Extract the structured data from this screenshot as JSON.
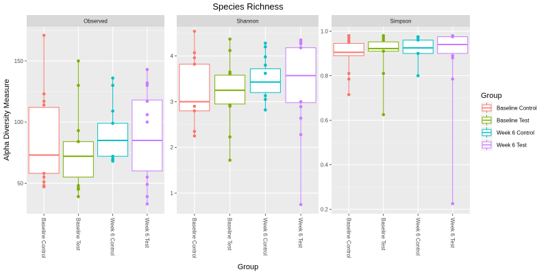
{
  "chart_data": {
    "type": "box",
    "title": "Species Richness",
    "xlabel": "Group",
    "ylabel": "Alpha Diversity Measure",
    "categories": [
      "Baseline Control",
      "Baseline Test",
      "Week 6 Control",
      "Week 6 Test"
    ],
    "legend": {
      "title": "Group",
      "placement": "right",
      "entries": [
        "Baseline Control",
        "Baseline Test",
        "Week 6 Control",
        "Week 6 Test"
      ]
    },
    "colors": [
      "#F8766D",
      "#7CAE00",
      "#00BFC4",
      "#C77CFF"
    ],
    "panels": [
      {
        "name": "Observed",
        "ylim": [
          25,
          178
        ],
        "yticks": [
          50,
          100,
          150
        ],
        "boxes": [
          {
            "q1": 58,
            "median": 73,
            "q3": 112,
            "whisker_low": 47,
            "whisker_high": 171
          },
          {
            "q1": 55,
            "median": 72,
            "q3": 84,
            "whisker_low": 39,
            "whisker_high": 150
          },
          {
            "q1": 72,
            "median": 85,
            "q3": 99,
            "whisker_low": 68,
            "whisker_high": 136
          },
          {
            "q1": 60,
            "median": 85,
            "q3": 118,
            "whisker_low": 33,
            "whisker_high": 143
          }
        ],
        "points": [
          [
            171,
            123,
            117,
            114,
            58,
            55,
            51,
            48,
            47
          ],
          [
            150,
            130,
            93,
            84,
            48,
            46,
            45,
            39
          ],
          [
            136,
            130,
            109,
            99,
            72,
            70,
            69,
            68
          ],
          [
            143,
            132,
            130,
            117,
            106,
            100,
            55,
            49,
            39,
            33
          ]
        ]
      },
      {
        "name": "Shannon",
        "ylim": [
          0.55,
          4.64
        ],
        "yticks": [
          1,
          2,
          3,
          4
        ],
        "boxes": [
          {
            "q1": 2.8,
            "median": 3.0,
            "q3": 3.82,
            "whisker_low": 2.25,
            "whisker_high": 4.54
          },
          {
            "q1": 2.95,
            "median": 3.25,
            "q3": 3.58,
            "whisker_low": 1.72,
            "whisker_high": 4.37
          },
          {
            "q1": 3.2,
            "median": 3.43,
            "q3": 3.72,
            "whisker_low": 2.82,
            "whisker_high": 4.28
          },
          {
            "q1": 2.98,
            "median": 3.57,
            "q3": 4.18,
            "whisker_low": 0.75,
            "whisker_high": 4.35
          }
        ],
        "points": [
          [
            4.54,
            4.07,
            3.96,
            3.82,
            2.9,
            2.8,
            2.35,
            2.25
          ],
          [
            4.37,
            4.12,
            3.65,
            3.61,
            2.93,
            2.9,
            2.23,
            1.72
          ],
          [
            4.28,
            4.2,
            3.98,
            3.8,
            3.62,
            3.13,
            3.05,
            2.82
          ],
          [
            4.35,
            4.3,
            4.27,
            4.18,
            3.0,
            2.89,
            2.64,
            2.28,
            0.75
          ]
        ]
      },
      {
        "name": "Simpson",
        "ylim": [
          0.18,
          1.02
        ],
        "yticks": [
          0.2,
          0.4,
          0.6,
          0.8,
          1.0
        ],
        "yticklabels": [
          "0.2",
          "0.4",
          "0.6",
          "0.8",
          "1.0"
        ],
        "boxes": [
          {
            "q1": 0.89,
            "median": 0.905,
            "q3": 0.945,
            "whisker_low": 0.715,
            "whisker_high": 0.98
          },
          {
            "q1": 0.91,
            "median": 0.922,
            "q3": 0.952,
            "whisker_low": 0.625,
            "whisker_high": 0.98
          },
          {
            "q1": 0.9,
            "median": 0.925,
            "q3": 0.96,
            "whisker_low": 0.8,
            "whisker_high": 0.975
          },
          {
            "q1": 0.9,
            "median": 0.94,
            "q3": 0.975,
            "whisker_low": 0.225,
            "whisker_high": 0.98
          }
        ],
        "points": [
          [
            0.98,
            0.97,
            0.96,
            0.95,
            0.81,
            0.785,
            0.715
          ],
          [
            0.98,
            0.97,
            0.96,
            0.91,
            0.81,
            0.625
          ],
          [
            0.975,
            0.97,
            0.96,
            0.9,
            0.8
          ],
          [
            0.98,
            0.975,
            0.89,
            0.88,
            0.785,
            0.225
          ]
        ]
      }
    ]
  }
}
